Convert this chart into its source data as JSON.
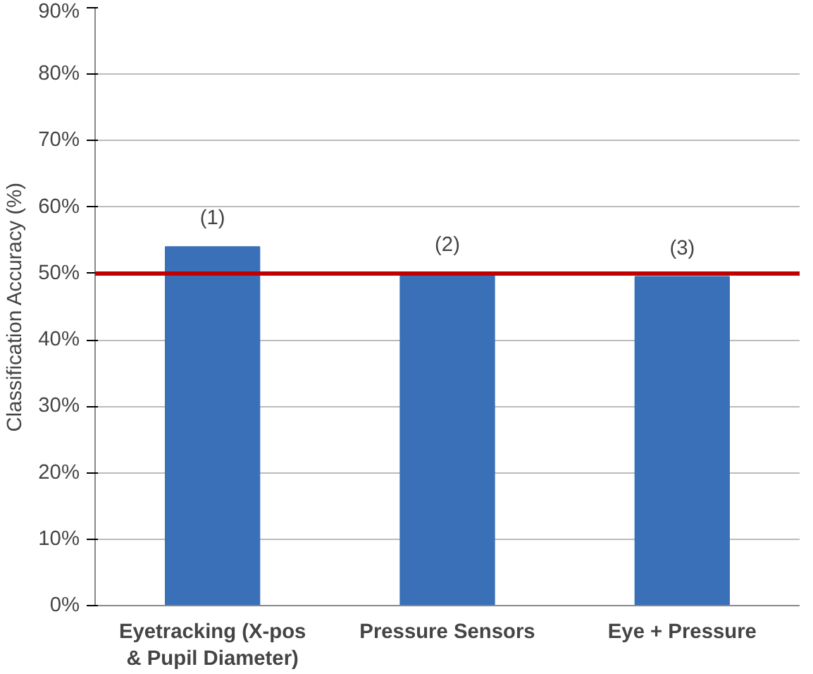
{
  "chart_data": {
    "type": "bar",
    "ylabel": "Classification Accuracy (%)",
    "categories": [
      "Eyetracking (X-pos\n& Pupil Diameter)",
      "Pressure Sensors",
      "Eye + Pressure"
    ],
    "values": [
      54,
      50,
      49.5
    ],
    "color": "#3a70b8",
    "ylim": [
      0,
      90
    ],
    "yticks": [
      {
        "value": 0,
        "label": "0%"
      },
      {
        "value": 10,
        "label": "10%"
      },
      {
        "value": 20,
        "label": "20%"
      },
      {
        "value": 30,
        "label": "30%"
      },
      {
        "value": 40,
        "label": "40%"
      },
      {
        "value": 50,
        "label": "50%"
      },
      {
        "value": 60,
        "label": "60%"
      },
      {
        "value": 70,
        "label": "70%"
      },
      {
        "value": 80,
        "label": "80%"
      },
      {
        "value": 90,
        "label": "90%"
      }
    ],
    "grid": "y",
    "ref_lines": [
      {
        "axis": "y",
        "value": 50,
        "color": "#c00000"
      }
    ],
    "annotations": [
      "(1)",
      "(2)",
      "(3)"
    ]
  }
}
